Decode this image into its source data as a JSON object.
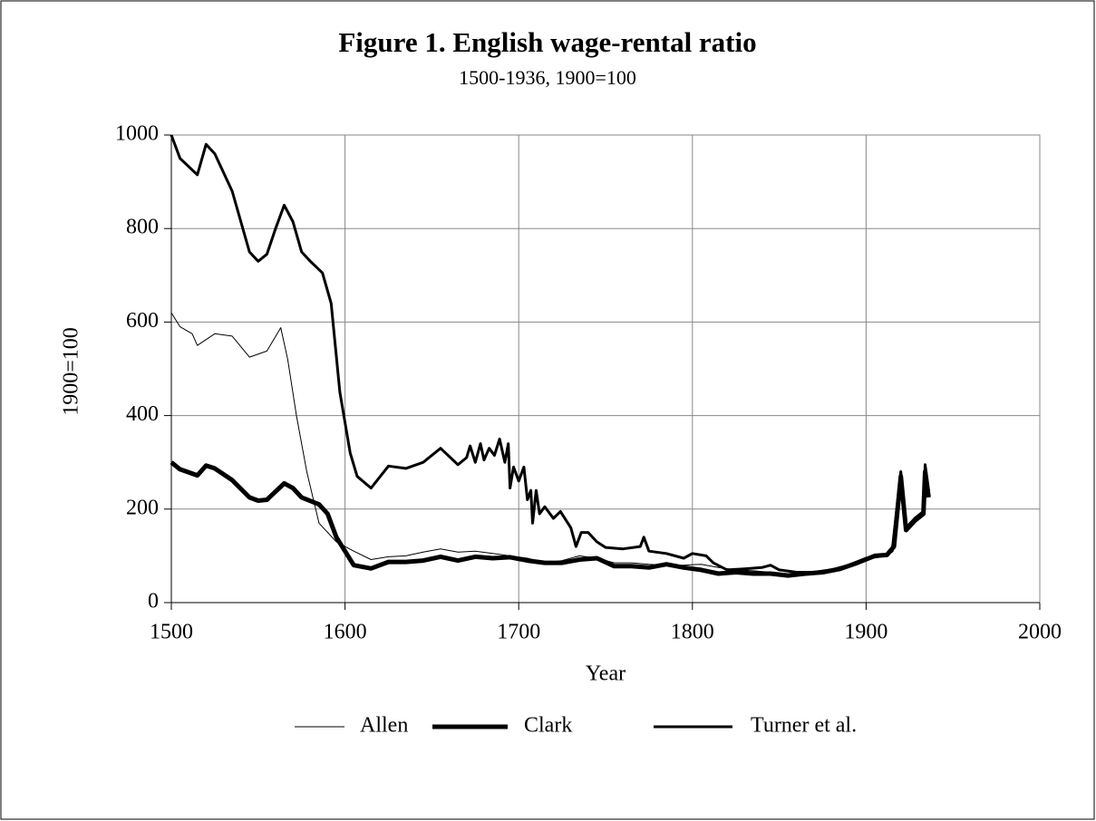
{
  "chart_data": {
    "type": "line",
    "title": "Figure 1. English wage-rental ratio",
    "subtitle": "1500-1936, 1900=100",
    "x_label": "Year",
    "y_label": "1900=100",
    "xlim": [
      1500,
      2000
    ],
    "xticks": [
      1500,
      1600,
      1700,
      1800,
      1900,
      2000
    ],
    "ylim": [
      0,
      1000
    ],
    "yticks": [
      0,
      200,
      400,
      600,
      800,
      1000
    ],
    "grid": true,
    "legend": "bottom",
    "series": [
      {
        "name": "Allen",
        "color": "#000000",
        "x": [
          1500,
          1505,
          1512,
          1515,
          1525,
          1535,
          1545,
          1555,
          1563,
          1567,
          1572,
          1578,
          1585,
          1595,
          1605,
          1615,
          1625,
          1635,
          1645,
          1655,
          1665,
          1675,
          1685,
          1695,
          1705,
          1715,
          1725,
          1735,
          1745,
          1755,
          1765,
          1775,
          1785,
          1795,
          1805,
          1815,
          1825,
          1835,
          1845,
          1855,
          1865,
          1875,
          1885,
          1895,
          1905,
          1912,
          1916,
          1920,
          1923,
          1928,
          1933,
          1934,
          1936
        ],
        "values": [
          620,
          590,
          575,
          550,
          575,
          570,
          525,
          538,
          588,
          520,
          400,
          280,
          170,
          130,
          110,
          92,
          98,
          100,
          108,
          115,
          108,
          110,
          105,
          100,
          95,
          85,
          90,
          100,
          95,
          85,
          85,
          82,
          80,
          80,
          82,
          75,
          70,
          68,
          65,
          60,
          60,
          65,
          70,
          85,
          100,
          100,
          115,
          265,
          155,
          175,
          190,
          270,
          230
        ]
      },
      {
        "name": "Clark",
        "color": "#000000",
        "x": [
          1500,
          1505,
          1515,
          1520,
          1525,
          1535,
          1545,
          1550,
          1555,
          1565,
          1570,
          1575,
          1585,
          1590,
          1595,
          1600,
          1605,
          1615,
          1625,
          1635,
          1645,
          1655,
          1665,
          1675,
          1685,
          1695,
          1705,
          1715,
          1725,
          1735,
          1745,
          1755,
          1765,
          1775,
          1785,
          1795,
          1805,
          1815,
          1825,
          1835,
          1845,
          1855,
          1865,
          1875,
          1885,
          1895,
          1905,
          1912,
          1916,
          1920,
          1923,
          1928,
          1933,
          1934,
          1936
        ],
        "values": [
          300,
          285,
          272,
          293,
          287,
          262,
          225,
          218,
          220,
          255,
          245,
          225,
          210,
          190,
          140,
          110,
          80,
          73,
          87,
          87,
          90,
          98,
          90,
          98,
          95,
          97,
          90,
          85,
          85,
          92,
          95,
          78,
          78,
          75,
          82,
          75,
          70,
          62,
          65,
          62,
          62,
          58,
          62,
          65,
          72,
          85,
          100,
          102,
          120,
          270,
          155,
          175,
          190,
          280,
          225
        ]
      },
      {
        "name": "Turner et al.",
        "color": "#000000",
        "x": [
          1500,
          1505,
          1515,
          1520,
          1525,
          1535,
          1545,
          1550,
          1555,
          1560,
          1565,
          1570,
          1575,
          1580,
          1587,
          1592,
          1597,
          1603,
          1607,
          1615,
          1625,
          1635,
          1645,
          1655,
          1665,
          1670,
          1672,
          1675,
          1678,
          1680,
          1683,
          1686,
          1689,
          1692,
          1694,
          1695,
          1697,
          1700,
          1703,
          1705,
          1707,
          1708,
          1710,
          1712,
          1715,
          1720,
          1724,
          1730,
          1733,
          1736,
          1740,
          1745,
          1750,
          1760,
          1770,
          1772,
          1775,
          1785,
          1795,
          1800,
          1808,
          1812,
          1820,
          1830,
          1840,
          1845,
          1850,
          1860,
          1870,
          1880,
          1890,
          1900,
          1910,
          1915,
          1920,
          1923,
          1928,
          1933,
          1934,
          1936
        ],
        "values": [
          1000,
          950,
          915,
          980,
          960,
          880,
          750,
          730,
          745,
          800,
          850,
          815,
          750,
          730,
          705,
          640,
          450,
          320,
          270,
          245,
          292,
          287,
          300,
          330,
          295,
          310,
          335,
          300,
          340,
          305,
          330,
          315,
          350,
          300,
          340,
          245,
          290,
          260,
          290,
          220,
          240,
          170,
          240,
          190,
          205,
          180,
          195,
          160,
          120,
          150,
          150,
          130,
          118,
          115,
          120,
          140,
          110,
          105,
          95,
          105,
          100,
          85,
          70,
          72,
          75,
          80,
          70,
          65,
          65,
          70,
          80,
          95,
          100,
          110,
          280,
          160,
          180,
          195,
          295,
          240
        ]
      }
    ]
  }
}
